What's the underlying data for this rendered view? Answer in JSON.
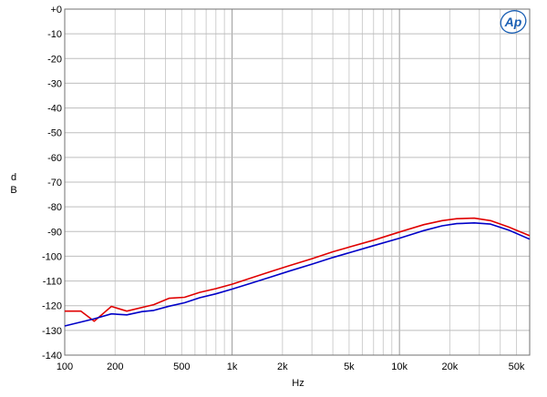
{
  "logo": {
    "text": "Ap",
    "color": "#1a5fb4"
  },
  "chart_data": {
    "type": "line",
    "title": "",
    "xlabel": "Hz",
    "ylabel_line1": "d",
    "ylabel_line2": "B",
    "x_scale": "log",
    "xlim": [
      100,
      60000
    ],
    "ylim": [
      -140,
      0
    ],
    "grid": true,
    "x_ticks": [
      {
        "value": 100,
        "label": "100"
      },
      {
        "value": 200,
        "label": "200"
      },
      {
        "value": 500,
        "label": "500"
      },
      {
        "value": 1000,
        "label": "1k"
      },
      {
        "value": 2000,
        "label": "2k"
      },
      {
        "value": 5000,
        "label": "5k"
      },
      {
        "value": 10000,
        "label": "10k"
      },
      {
        "value": 20000,
        "label": "20k"
      },
      {
        "value": 50000,
        "label": "50k"
      }
    ],
    "y_ticks": [
      {
        "value": 0,
        "label": "+0"
      },
      {
        "value": -10,
        "label": "-10"
      },
      {
        "value": -20,
        "label": "-20"
      },
      {
        "value": -30,
        "label": "-30"
      },
      {
        "value": -40,
        "label": "-40"
      },
      {
        "value": -50,
        "label": "-50"
      },
      {
        "value": -60,
        "label": "-60"
      },
      {
        "value": -70,
        "label": "-70"
      },
      {
        "value": -80,
        "label": "-80"
      },
      {
        "value": -90,
        "label": "-90"
      },
      {
        "value": -100,
        "label": "-100"
      },
      {
        "value": -110,
        "label": "-110"
      },
      {
        "value": -120,
        "label": "-120"
      },
      {
        "value": -130,
        "label": "-130"
      },
      {
        "value": -140,
        "label": "-140"
      }
    ],
    "series": [
      {
        "color": "#e00000",
        "points": [
          [
            100,
            -122.2
          ],
          [
            125,
            -122.2
          ],
          [
            150,
            -126.3
          ],
          [
            190,
            -120.3
          ],
          [
            235,
            -122.2
          ],
          [
            290,
            -120.7
          ],
          [
            340,
            -119.6
          ],
          [
            420,
            -117.0
          ],
          [
            520,
            -116.6
          ],
          [
            640,
            -114.6
          ],
          [
            800,
            -113.1
          ],
          [
            1000,
            -111.3
          ],
          [
            1300,
            -108.8
          ],
          [
            1700,
            -106.2
          ],
          [
            2200,
            -103.8
          ],
          [
            3000,
            -101.0
          ],
          [
            4000,
            -98.2
          ],
          [
            5000,
            -96.3
          ],
          [
            7000,
            -93.5
          ],
          [
            10000,
            -90.2
          ],
          [
            14000,
            -87.2
          ],
          [
            18000,
            -85.6
          ],
          [
            22000,
            -84.8
          ],
          [
            28000,
            -84.6
          ],
          [
            35000,
            -85.6
          ],
          [
            45000,
            -88.2
          ],
          [
            60000,
            -91.7
          ]
        ]
      },
      {
        "color": "#0000c8",
        "points": [
          [
            100,
            -128.2
          ],
          [
            150,
            -125.3
          ],
          [
            190,
            -123.3
          ],
          [
            235,
            -123.7
          ],
          [
            290,
            -122.4
          ],
          [
            340,
            -121.9
          ],
          [
            420,
            -120.2
          ],
          [
            520,
            -118.8
          ],
          [
            640,
            -116.8
          ],
          [
            800,
            -115.2
          ],
          [
            1000,
            -113.3
          ],
          [
            1300,
            -110.9
          ],
          [
            1700,
            -108.4
          ],
          [
            2200,
            -106.0
          ],
          [
            3000,
            -103.2
          ],
          [
            4000,
            -100.5
          ],
          [
            5000,
            -98.6
          ],
          [
            7000,
            -95.7
          ],
          [
            10000,
            -92.7
          ],
          [
            14000,
            -89.6
          ],
          [
            18000,
            -87.7
          ],
          [
            22000,
            -86.8
          ],
          [
            28000,
            -86.5
          ],
          [
            35000,
            -87.0
          ],
          [
            45000,
            -89.4
          ],
          [
            60000,
            -93.1
          ]
        ]
      }
    ]
  }
}
